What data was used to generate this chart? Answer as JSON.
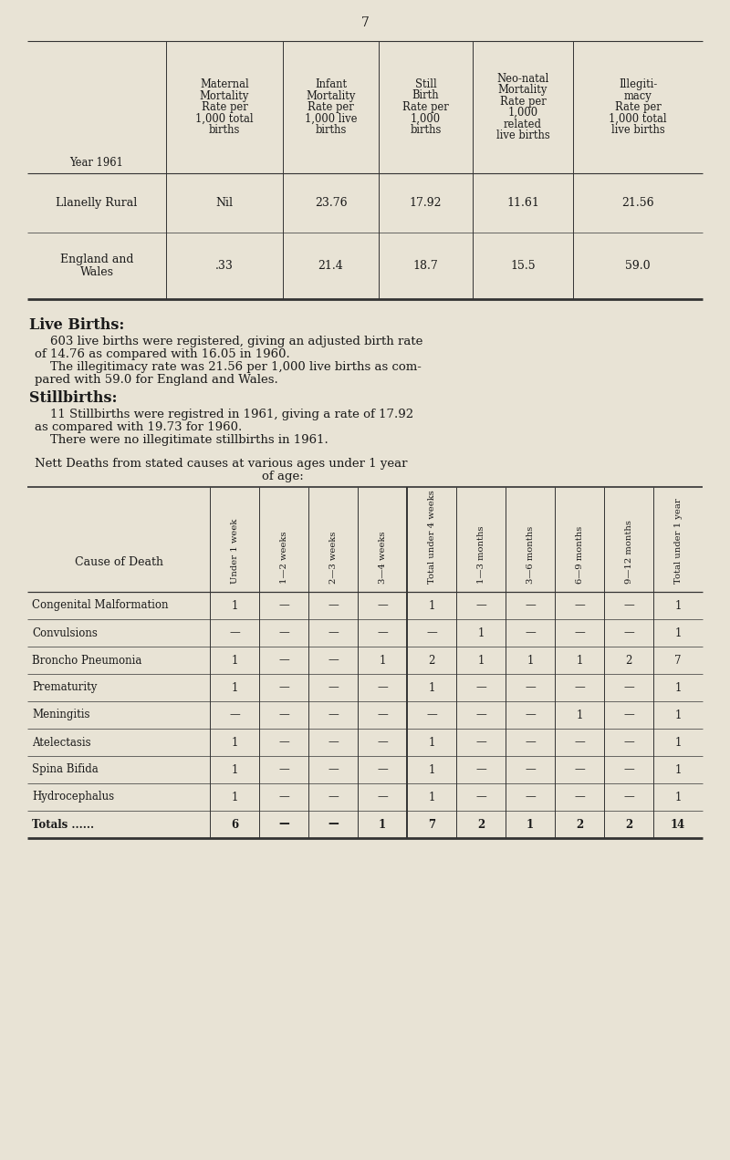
{
  "page_number": "7",
  "bg_color": "#e8e3d5",
  "text_color": "#1a1a1a",
  "top_table": {
    "col_headers": [
      "Maternal\nMortality\nRate per\n1,000 total\nbirths",
      "Infant\nMortality\nRate per\n1,000 live\nbirths",
      "Still\nBirth\nRate per\n1,000\nbirths",
      "Neo-natal\nMortality\nRate per\n1,000\nrelated\nlive births",
      "Illegiti-\nmacy\nRate per\n1,000 total\nlive births"
    ],
    "row_label": "Year 1961",
    "rows": [
      {
        "label": "Llanelly Rural",
        "values": [
          "Nil",
          "23.76",
          "17.92",
          "11.61",
          "21.56"
        ]
      },
      {
        "label": "England and\nWales",
        "values": [
          ".33",
          "21.4",
          "18.7",
          "15.5",
          "59.0"
        ]
      }
    ]
  },
  "section1_title": "Live Births:",
  "section1_lines": [
    "    603 live births were registered, giving an adjusted birth rate",
    "of 14.76 as compared with 16.05 in 1960.",
    "    The illegitimacy rate was 21.56 per 1,000 live births as com-",
    "pared with 59.0 for England and Wales."
  ],
  "section2_title": "Stillbirths:",
  "section2_lines": [
    "    11 Stillbirths were registred in 1961, giving a rate of 17.92",
    "as compared with 19.73 for 1960.",
    "    There were no illegitimate stillbirths in 1961."
  ],
  "section3_line1": "Nett Deaths from stated causes at various ages under 1 year",
  "section3_line2": "of age:",
  "death_table": {
    "col_headers": [
      "Under 1 week",
      "1—2 weeks",
      "2—3 weeks",
      "3—4 weeks",
      "Total under 4 weeks",
      "1—3 months",
      "3—6 months",
      "6—9 months",
      "9—12 months",
      "Total under 1 year"
    ],
    "rows": [
      {
        "label": "Congenital Malformation",
        "dots": "......",
        "values": [
          "1",
          "—",
          "—",
          "—",
          "1",
          "—",
          "—",
          "—",
          "—",
          "1"
        ],
        "is_total": false
      },
      {
        "label": "Convulsions",
        "dots": "......",
        "values": [
          "—",
          "—",
          "—",
          "—",
          "—",
          "1",
          "—",
          "—",
          "—",
          "1"
        ],
        "is_total": false
      },
      {
        "label": "Broncho Pneumonia",
        "dots": "......",
        "values": [
          "1",
          "—",
          "—",
          "1",
          "2",
          "1",
          "1",
          "1",
          "2",
          "7"
        ],
        "is_total": false
      },
      {
        "label": "Prematurity",
        "dots": "......",
        "values": [
          "1",
          "—",
          "—",
          "—",
          "1",
          "—",
          "—",
          "—",
          "—",
          "1"
        ],
        "is_total": false
      },
      {
        "label": "Meningitis",
        "dots": "......",
        "values": [
          "—",
          "—",
          "—",
          "—",
          "—",
          "—",
          "—",
          "1",
          "—",
          "1"
        ],
        "is_total": false
      },
      {
        "label": "Atelectasis",
        "dots": "......",
        "values": [
          "1",
          "—",
          "—",
          "—",
          "1",
          "—",
          "—",
          "—",
          "—",
          "1"
        ],
        "is_total": false
      },
      {
        "label": "Spina Bifida",
        "dots": "......",
        "values": [
          "1",
          "—",
          "—",
          "—",
          "1",
          "—",
          "—",
          "—",
          "—",
          "1"
        ],
        "is_total": false
      },
      {
        "label": "Hydrocephalus",
        "dots": "......",
        "values": [
          "1",
          "—",
          "—",
          "—",
          "1",
          "—",
          "—",
          "—",
          "—",
          "1"
        ],
        "is_total": false
      },
      {
        "label": "Totals ......",
        "dots": "",
        "values": [
          "6",
          "—",
          "—",
          "1",
          "7",
          "2",
          "1",
          "2",
          "2",
          "14"
        ],
        "is_total": true
      }
    ]
  }
}
